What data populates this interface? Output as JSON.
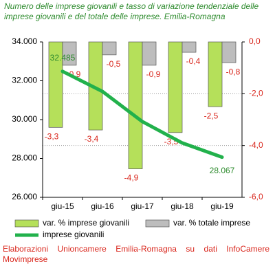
{
  "chart_data": {
    "type": "bar-line",
    "title": "Numero delle imprese giovanili e tasso di variazione tendenziale delle imprese giovanili e del totale delle imprese. Emilia-Romagna",
    "categories": [
      "giu-15",
      "giu-16",
      "giu-17",
      "giu-18",
      "giu-19"
    ],
    "series": [
      {
        "name": "var. % imprese giovanili",
        "color": "#b5e05a",
        "axis": "y2",
        "values": [
          -3.3,
          -3.4,
          -4.9,
          -3.5,
          -2.5
        ],
        "value_labels": [
          "-3,3",
          "-3,4",
          "-4,9",
          "-3,5",
          "-2,5"
        ]
      },
      {
        "name": "var. % totale imprese",
        "color": "#bdbdbd",
        "axis": "y2",
        "values": [
          -0.9,
          -0.5,
          -0.9,
          -0.4,
          -0.8
        ],
        "value_labels": [
          "-0,9",
          "-0,5",
          "-0,9",
          "-0,4",
          "-0,8"
        ]
      },
      {
        "name": "imprese giovanili",
        "color": "#22b14c",
        "type": "line",
        "values": [
          32485,
          31450,
          29900,
          28800,
          28067
        ],
        "value_labels": [
          "32.485",
          null,
          null,
          null,
          "28.067"
        ]
      }
    ],
    "ylim": [
      26000,
      34000
    ],
    "yticks": [
      {
        "value": 26000,
        "label": "26.000"
      },
      {
        "value": 28000,
        "label": "28.000"
      },
      {
        "value": 30000,
        "label": "30.000"
      },
      {
        "value": 32000,
        "label": "32.000"
      },
      {
        "value": 34000,
        "label": "34.000"
      }
    ],
    "y2lim": [
      -6,
      0
    ],
    "y2ticks": [
      {
        "value": -6,
        "label": "-6,0"
      },
      {
        "value": -4,
        "label": "-4,0"
      },
      {
        "value": -2,
        "label": "-2,0"
      },
      {
        "value": 0,
        "label": "0,0"
      }
    ],
    "grid": true,
    "footer": "Elaborazioni Unioncamere Emilia-Romagna su dati InfoCamere Movimprese"
  }
}
